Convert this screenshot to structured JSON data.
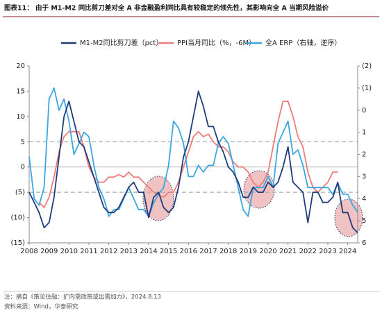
{
  "chart_data": {
    "type": "line",
    "title": "图表11：  由于 M1-M2 同比剪刀差对全 A 非金融盈利同比具有较稳定的领先性，其影响向全 A 当期风险溢价",
    "note": "注：摘自《策论往融：扩内需政策或出需加力》，2024.8.13",
    "source": "资料来源：Wind，华泰研究",
    "x": [
      2008,
      2008.25,
      2008.5,
      2008.75,
      2009,
      2009.25,
      2009.5,
      2009.75,
      2010,
      2010.25,
      2010.5,
      2010.75,
      2011,
      2011.25,
      2011.5,
      2011.75,
      2012,
      2012.25,
      2012.5,
      2012.75,
      2013,
      2013.25,
      2013.5,
      2013.75,
      2014,
      2014.25,
      2014.5,
      2014.75,
      2015,
      2015.25,
      2015.5,
      2015.75,
      2016,
      2016.25,
      2016.5,
      2016.75,
      2017,
      2017.25,
      2017.5,
      2017.75,
      2018,
      2018.25,
      2018.5,
      2018.75,
      2019,
      2019.25,
      2019.5,
      2019.75,
      2020,
      2020.25,
      2020.5,
      2020.75,
      2021,
      2021.25,
      2021.5,
      2021.75,
      2022,
      2022.25,
      2022.5,
      2022.75,
      2023,
      2023.25,
      2023.5,
      2023.75,
      2024,
      2024.25,
      2024.5
    ],
    "series": [
      {
        "name": "M1-M2同比剪刀差（pct）",
        "color": "#1f3b7a",
        "values": [
          -5,
          -7,
          -9,
          -12,
          -11,
          -6,
          2,
          10,
          13,
          9,
          5,
          4,
          1,
          -2,
          -5,
          -8,
          -9,
          -9,
          -8,
          -6,
          -4,
          -3,
          -5,
          -5,
          -10,
          -6,
          -5,
          -8,
          -9,
          -8,
          -4,
          2,
          5,
          10,
          15,
          12,
          8,
          8,
          5,
          3,
          0,
          -1,
          -3,
          -6,
          -6,
          -4,
          -5,
          -5,
          -3,
          -4,
          -3,
          0,
          4,
          -3,
          -4,
          -5,
          -11,
          -5,
          -5,
          -7,
          -7,
          -6,
          -3,
          -9,
          -9,
          -12,
          -13
        ]
      },
      {
        "name": "PPI当月同比（%，-6M）",
        "color": "#f07a7a",
        "values": [
          null,
          null,
          -7,
          -8,
          -6,
          -2,
          3,
          6,
          7,
          7,
          7,
          4,
          0,
          -2,
          -3,
          -3,
          -2,
          -2,
          -1.5,
          -2,
          -1,
          -2,
          -2,
          -3,
          -4,
          -5,
          -5.5,
          -6,
          -5,
          -5,
          -3,
          0,
          3,
          6,
          7,
          6,
          6.5,
          5,
          4,
          4,
          3,
          1,
          0,
          0,
          -1,
          -3,
          -4,
          -3,
          -1,
          4,
          9,
          13,
          13,
          10,
          6,
          4,
          -1,
          -4,
          -5,
          -4,
          -3,
          -1,
          -1,
          null,
          null,
          null,
          null
        ]
      },
      {
        "name": "全A ERP（右轴，逆序）",
        "color": "#3aa6e2",
        "axis": "y2",
        "values": [
          2.1,
          4,
          4.3,
          3.5,
          -0.5,
          -1,
          0,
          -0.5,
          0.5,
          2,
          1.5,
          1,
          1.2,
          2.5,
          3.5,
          4,
          4.8,
          4.5,
          4.5,
          4,
          3.5,
          4,
          4.5,
          4.5,
          4.8,
          4.2,
          3.8,
          3.5,
          2.5,
          0.5,
          0.8,
          1.5,
          3,
          3,
          2.5,
          2.8,
          2.5,
          2.5,
          1.5,
          1.2,
          1.5,
          2.5,
          3.5,
          4.5,
          4.8,
          3.5,
          3.5,
          3.5,
          3,
          3.5,
          1.5,
          1,
          0.5,
          2,
          1.8,
          2.5,
          3.5,
          3.5,
          3.5,
          3.5,
          3.5,
          3.8,
          3.3,
          3.8,
          3.8,
          4.3,
          4.6
        ]
      }
    ],
    "xlim": [
      2008,
      2024.5
    ],
    "xticks": [
      2008,
      2009,
      2010,
      2011,
      2012,
      2013,
      2014,
      2015,
      2016,
      2017,
      2018,
      2019,
      2020,
      2021,
      2022,
      2023,
      2024
    ],
    "ylim": [
      -15,
      20
    ],
    "yticks": [
      {
        "value": -15,
        "label": "(15)"
      },
      {
        "value": -10,
        "label": "(10)"
      },
      {
        "value": -5,
        "label": "(5)"
      },
      0,
      5,
      10,
      15,
      20
    ],
    "y2lim": [
      -2,
      6
    ],
    "y2_inverted": true,
    "y2ticks": [
      {
        "value": -2,
        "label": "(2)"
      },
      {
        "value": -1,
        "label": "(1)"
      },
      0,
      1,
      2,
      3,
      4,
      5,
      6
    ],
    "hlines": [
      5,
      -5
    ],
    "legend": "top"
  }
}
